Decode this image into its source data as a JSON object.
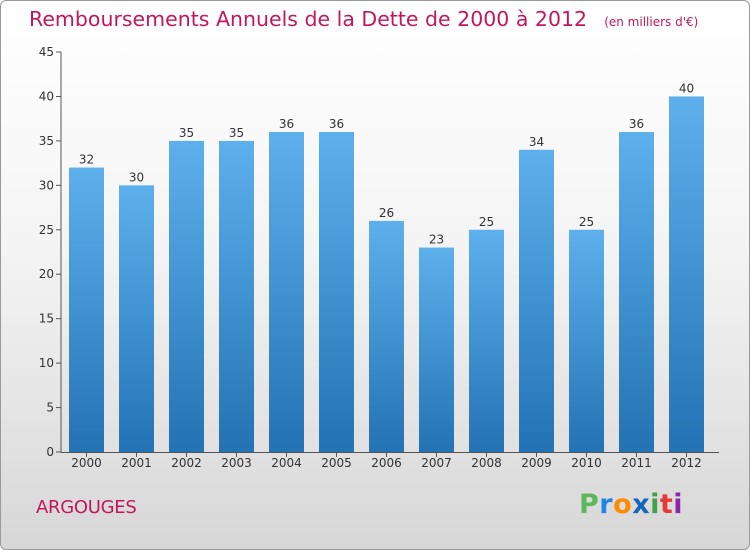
{
  "header": {
    "title": "Remboursements Annuels de la Dette de 2000 à 2012",
    "unit": "(en milliers d'€)"
  },
  "footer": {
    "commune": "ARGOUGES",
    "logo_text": "Proxiti"
  },
  "colors": {
    "title": "#c2185b",
    "bar_top": "#5eb0ec",
    "bar_bottom": "#2373b4"
  },
  "chart_data": {
    "type": "bar",
    "title": "Remboursements Annuels de la Dette de 2000 à 2012",
    "xlabel": "",
    "ylabel": "",
    "ylim": [
      0,
      45
    ],
    "yticks": [
      0,
      5,
      10,
      15,
      20,
      25,
      30,
      35,
      40,
      45
    ],
    "grid": false,
    "categories": [
      "2000",
      "2001",
      "2002",
      "2003",
      "2004",
      "2005",
      "2006",
      "2007",
      "2008",
      "2009",
      "2010",
      "2011",
      "2012"
    ],
    "values": [
      32,
      30,
      35,
      35,
      36,
      36,
      26,
      23,
      25,
      34,
      25,
      36,
      40
    ]
  }
}
